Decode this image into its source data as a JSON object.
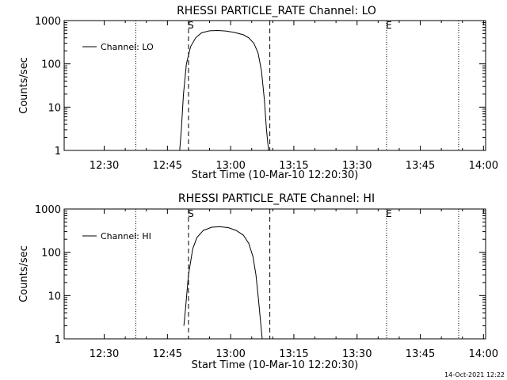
{
  "chart_data": [
    {
      "type": "line",
      "title": "RHESSI PARTICLE_RATE Channel: LO",
      "xlabel": "Start Time (10-Mar-10 12:20:30)",
      "ylabel": "Counts/sec",
      "x_unit": "minutes since 12:20:30",
      "xlim": [
        0,
        100
      ],
      "ylim": [
        1,
        1000
      ],
      "yscale": "log",
      "xticks": [
        {
          "value": 9.5,
          "label": "12:30"
        },
        {
          "value": 24.5,
          "label": "12:45"
        },
        {
          "value": 39.5,
          "label": "13:00"
        },
        {
          "value": 54.5,
          "label": "13:15"
        },
        {
          "value": 69.5,
          "label": "13:30"
        },
        {
          "value": 84.5,
          "label": "13:45"
        },
        {
          "value": 99.5,
          "label": "14:00"
        }
      ],
      "yticks": [
        {
          "value": 1,
          "label": "1"
        },
        {
          "value": 10,
          "label": "10"
        },
        {
          "value": 100,
          "label": "100"
        },
        {
          "value": 1000,
          "label": "1000"
        }
      ],
      "legend": {
        "entries": [
          "Channel: LO"
        ],
        "position": "top-left"
      },
      "grid": false,
      "markers": [
        {
          "label": "S",
          "x": 29.5,
          "style": "dashed"
        },
        {
          "label": "",
          "x": 48.8,
          "style": "dashed"
        },
        {
          "label": "",
          "x": 17.0,
          "style": "dotted"
        },
        {
          "label": "E",
          "x": 76.5,
          "style": "dotted"
        },
        {
          "label": "",
          "x": 93.6,
          "style": "dotted"
        }
      ],
      "series": [
        {
          "name": "Channel: LO",
          "x": [
            27.4,
            27.8,
            28.3,
            29.0,
            30.0,
            31.2,
            32.6,
            34.5,
            36.5,
            38.5,
            40.5,
            42.5,
            43.8,
            45.0,
            46.0,
            46.8,
            47.5,
            48.0,
            48.5
          ],
          "y": [
            1,
            3,
            20,
            100,
            250,
            400,
            520,
            580,
            590,
            570,
            530,
            470,
            400,
            300,
            180,
            70,
            15,
            3,
            1
          ]
        }
      ]
    },
    {
      "type": "line",
      "title": "RHESSI PARTICLE_RATE Channel: HI",
      "xlabel": "Start Time (10-Mar-10 12:20:30)",
      "ylabel": "Counts/sec",
      "x_unit": "minutes since 12:20:30",
      "xlim": [
        0,
        100
      ],
      "ylim": [
        1,
        1000
      ],
      "yscale": "log",
      "xticks": [
        {
          "value": 9.5,
          "label": "12:30"
        },
        {
          "value": 24.5,
          "label": "12:45"
        },
        {
          "value": 39.5,
          "label": "13:00"
        },
        {
          "value": 54.5,
          "label": "13:15"
        },
        {
          "value": 69.5,
          "label": "13:30"
        },
        {
          "value": 84.5,
          "label": "13:45"
        },
        {
          "value": 99.5,
          "label": "14:00"
        }
      ],
      "yticks": [
        {
          "value": 1,
          "label": "1"
        },
        {
          "value": 10,
          "label": "10"
        },
        {
          "value": 100,
          "label": "100"
        },
        {
          "value": 1000,
          "label": "1000"
        }
      ],
      "legend": {
        "entries": [
          "Channel: HI"
        ],
        "position": "top-left"
      },
      "grid": false,
      "markers": [
        {
          "label": "S",
          "x": 29.5,
          "style": "dashed"
        },
        {
          "label": "",
          "x": 48.8,
          "style": "dashed"
        },
        {
          "label": "",
          "x": 17.0,
          "style": "dotted"
        },
        {
          "label": "E",
          "x": 76.5,
          "style": "dotted"
        },
        {
          "label": "",
          "x": 93.6,
          "style": "dotted"
        }
      ],
      "series": [
        {
          "name": "Channel: HI",
          "x": [
            28.4,
            28.8,
            29.5,
            30.5,
            31.5,
            33.0,
            35.0,
            37.0,
            39.0,
            40.8,
            42.5,
            43.8,
            44.8,
            45.5,
            46.1,
            46.6,
            47.0
          ],
          "y": [
            2,
            5,
            30,
            120,
            220,
            320,
            380,
            390,
            370,
            320,
            250,
            160,
            80,
            30,
            8,
            2.5,
            1
          ]
        }
      ]
    }
  ],
  "footer": {
    "timestamp": "14-Oct-2021 12:22"
  }
}
